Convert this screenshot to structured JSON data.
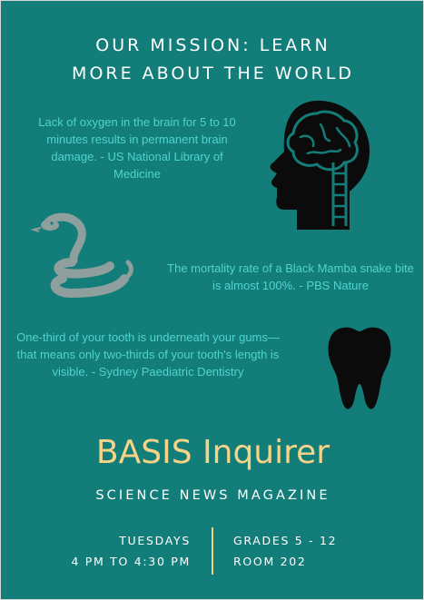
{
  "header": {
    "mission_line1": "OUR MISSION: LEARN",
    "mission_line2": "MORE ABOUT THE WORLD"
  },
  "facts": [
    {
      "text": "Lack of oxygen in the brain for 5 to 10 minutes results in permanent brain damage. - US National Library of Medicine",
      "icon": "brain-head-icon"
    },
    {
      "text": "The mortality rate of a Black Mamba snake bite is almost 100%. - PBS Nature",
      "icon": "snake-icon"
    },
    {
      "text": "One-third of your tooth is underneath your gums—that means only two-thirds of your tooth's length is visible. - Sydney Paediatric Dentistry",
      "icon": "tooth-icon"
    }
  ],
  "brand": {
    "name": "BASIS Inquirer",
    "tagline": "SCIENCE NEWS MAGAZINE"
  },
  "schedule": {
    "day": "TUESDAYS",
    "time": "4 PM TO 4:30 PM",
    "grades": "GRADES 5 - 12",
    "room": "ROOM 202"
  },
  "colors": {
    "background": "#137d79",
    "fact_text": "#50d4cf",
    "brand_text": "#f5d387",
    "divider": "#f5d387",
    "icon_dark": "#0b0b0b",
    "icon_snake": "#8f9f9d"
  }
}
